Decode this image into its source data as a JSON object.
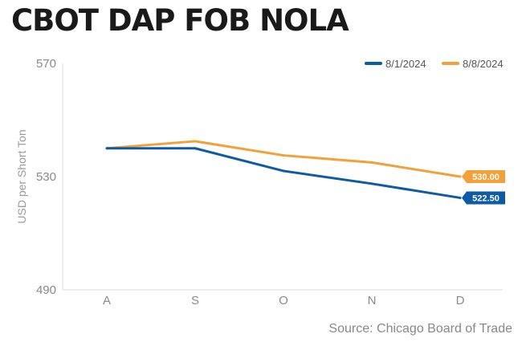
{
  "title": "CBOT DAP FOB NOLA",
  "source": "Source: Chicago Board of Trade",
  "chart_data": {
    "type": "line",
    "categories": [
      "A",
      "S",
      "O",
      "N",
      "D"
    ],
    "ylabel": "USD per Short Ton",
    "ylim": [
      490,
      570
    ],
    "yticks": [
      "570",
      "530",
      "490"
    ],
    "legend_position": "top-right",
    "series": [
      {
        "name": "8/1/2024",
        "color": "#0d5aa7",
        "values": [
          540,
          540,
          532,
          527.5,
          522.5
        ],
        "end_label": "522.50"
      },
      {
        "name": "8/8/2024",
        "color": "#f2a13a",
        "values": [
          540,
          542.5,
          537.5,
          535,
          530
        ],
        "end_label": "530.00"
      }
    ]
  }
}
